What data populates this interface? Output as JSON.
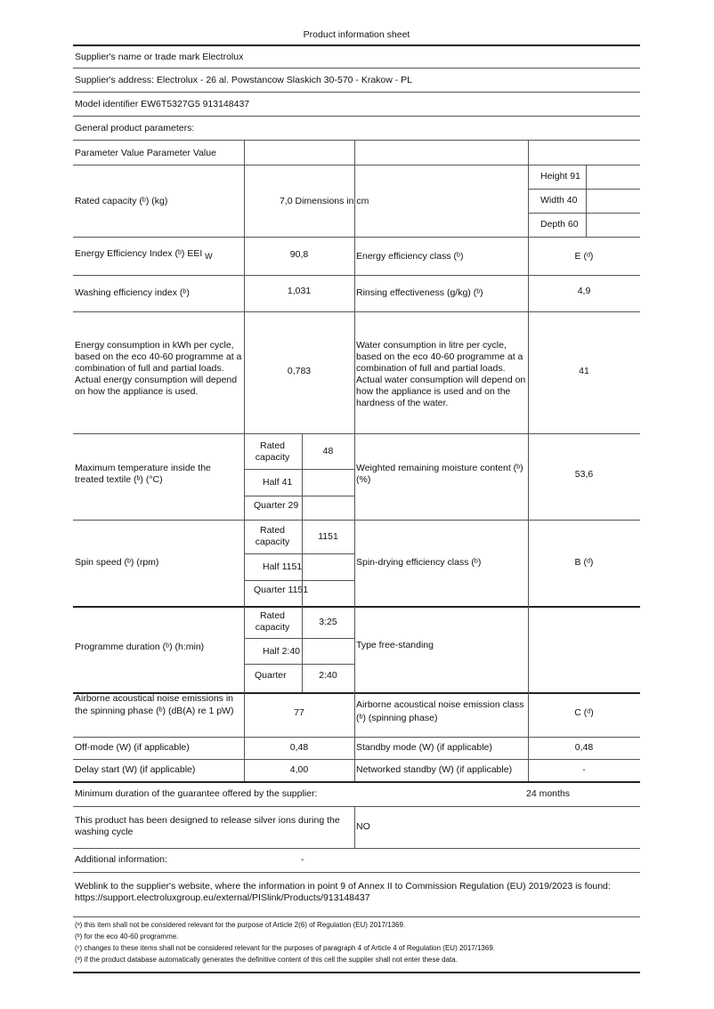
{
  "title": "Product information sheet",
  "supplier_name": "Supplier's name or trade mark Electrolux",
  "supplier_address": "Supplier's address: Electrolux - 26 al. Powstancow Slaskich 30-570 - Krakow - PL",
  "model_identifier": "Model identifier EW6T5327G5 913148437",
  "general": "General product parameters:",
  "table": {
    "header": "Parameter Value Parameter Value",
    "rated_capacity": {
      "label": "Rated capacity (ᵇ) (kg)",
      "value": "7,0 Dimensions in cm",
      "height": "Height 91",
      "width": "Width 40",
      "depth": "Depth 60"
    },
    "eei": {
      "label": "Energy Efficiency Index (ᵇ) EEI",
      "sub": "W",
      "value": "90,8",
      "label2": "Energy efficiency class (ᵇ)",
      "value2": "E (ᵈ)"
    },
    "washing": {
      "label": "Washing efficiency index (ᵇ)",
      "value": "1,031",
      "label2": "Rinsing effectiveness (g/kg) (ᵇ)",
      "value2": "4,9"
    },
    "energy": {
      "label": "Energy consumption in kWh per cycle, based on the eco 40-60 programme at a combination of full and partial loads. Actual energy consumption will depend on how the appliance is used.",
      "value": "0,783",
      "label2": "Water consumption in litre per cycle, based on the eco 40-60 programme at a combination of full and partial loads. Actual water consumption will depend on how the appliance is used and on the hardness of the water.",
      "value2": "41"
    },
    "temperature": {
      "label": "Maximum temperature inside the treated textile (ᵇ) (°C)",
      "rated_label": "Rated capacity",
      "rated": "48",
      "half": "Half 41",
      "quarter": "Quarter 29",
      "label2": "Weighted remaining moisture content (ᵇ) (%)",
      "value2": "53,6"
    },
    "spin": {
      "label": "Spin speed (ᵇ) (rpm)",
      "rated_label": "Rated capacity",
      "rated": "1151",
      "half": "Half 1151",
      "quarter": "Quarter 1151",
      "label2": "Spin-drying efficiency class (ᵇ)",
      "value2": "B (ᵈ)"
    },
    "duration": {
      "label": "Programme duration (ᵇ) (h:min)",
      "rated_label": "Rated capacity",
      "rated": "3:25",
      "half": "Half 2:40",
      "quarter_label": "Quarter",
      "quarter": "2:40",
      "label2": "Type free-standing"
    },
    "noise": {
      "label": "Airborne acoustical noise emissions in the spinning phase (ᵇ) (dB(A) re 1 pW)",
      "value": "77",
      "label2": "Airborne acoustical noise emission class (ᵇ) (spinning phase)",
      "value2": "C (ᵈ)"
    },
    "offmode": {
      "label": "Off-mode (W) (if applicable)",
      "value": "0,48",
      "label2": "Standby mode (W) (if applicable)",
      "value2": "0,48"
    },
    "delay": {
      "label": "Delay start (W) (if applicable)",
      "value": "4,00",
      "label2": "Networked standby (W) (if applicable)",
      "value2": "-"
    }
  },
  "guarantee": {
    "label": "Minimum duration of the guarantee offered by the supplier:",
    "value": "24 months"
  },
  "silver": {
    "label": "This product has been designed to release silver ions during the washing cycle",
    "value": "NO"
  },
  "additional": {
    "label": "Additional information:",
    "value": "-"
  },
  "weblink": "Weblink to the supplier's website, where the information in point 9 of Annex II to Commission Regulation (EU) 2019/2023 is found: https://support.electroluxgroup.eu/external/PISlink/Products/913148437",
  "footnotes": [
    "(ᵃ) this item shall not be considered relevant for the purpose of Article 2(6) of Regulation (EU) 2017/1369.",
    "(ᵇ) for the eco 40-60 programme.",
    "(ᶜ) changes to these items shall not be considered relevant for the purposes of paragraph 4 of Article 4 of Regulation (EU) 2017/1369.",
    "(ᵈ) if the product database automatically generates the definitive content of this cell the supplier shall not enter these data."
  ]
}
